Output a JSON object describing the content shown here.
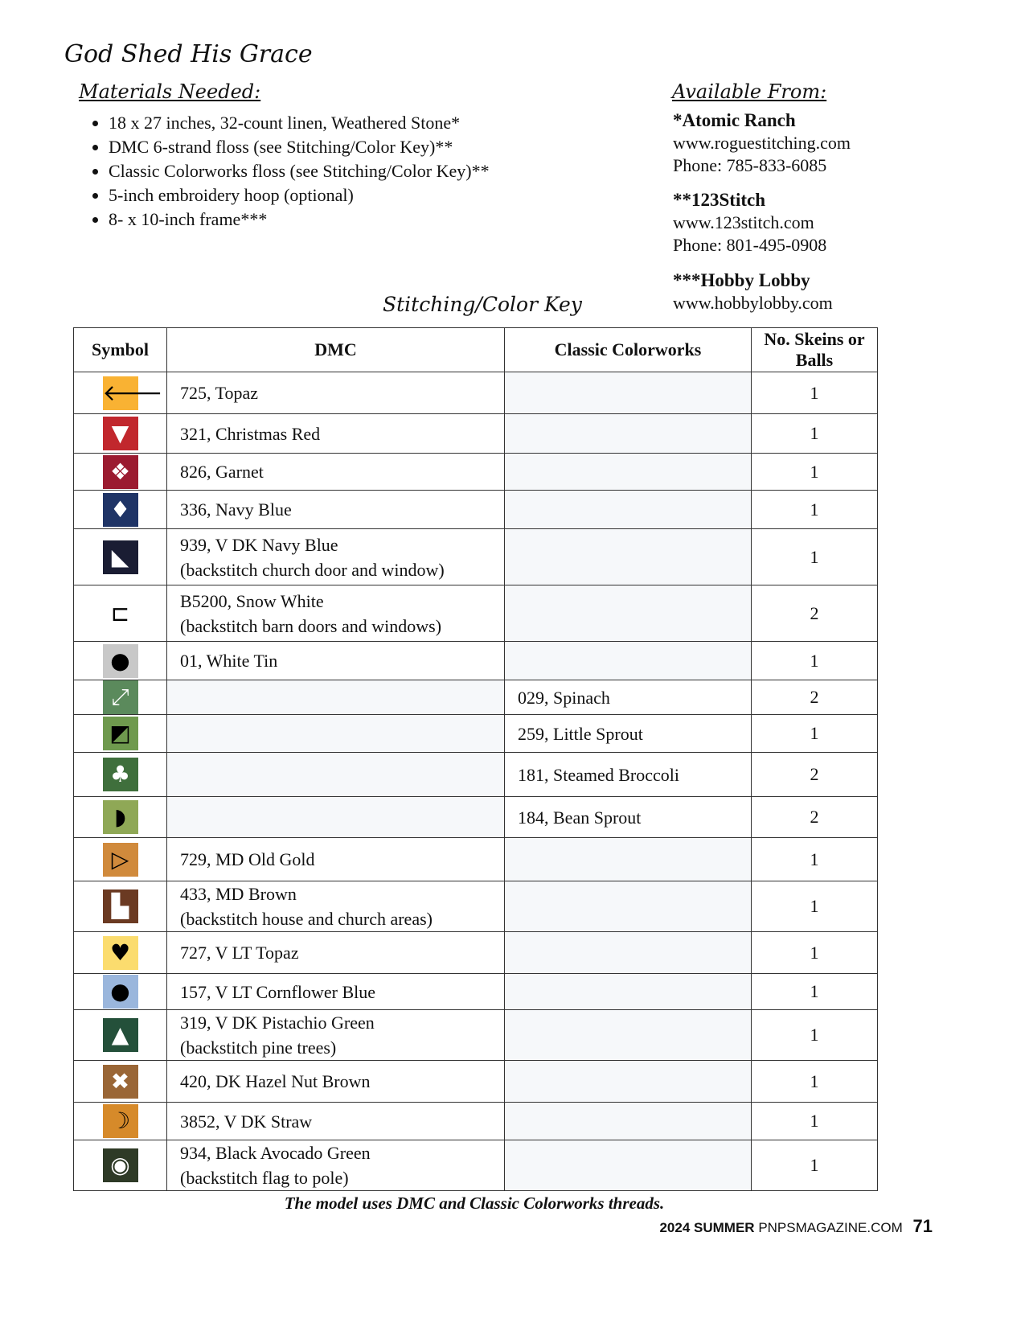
{
  "title": "God Shed His Grace",
  "materials": {
    "heading": "Materials Needed:",
    "items": [
      "18 x 27 inches, 32-count linen, Weathered Stone*",
      "DMC 6-strand floss (see Stitching/Color Key)**",
      "Classic Colorworks floss (see Stitching/Color Key)**",
      "5-inch embroidery hoop (optional)",
      "8- x 10-inch frame***"
    ]
  },
  "available": {
    "heading": "Available From:",
    "sources": [
      {
        "name": "*Atomic Ranch",
        "url": "www.roguestitching.com",
        "phone": "Phone: 785-833-6085"
      },
      {
        "name": "**123Stitch",
        "url": "www.123stitch.com",
        "phone": "Phone: 801-495-0908"
      },
      {
        "name": "***Hobby Lobby",
        "url": "www.hobbylobby.com"
      }
    ]
  },
  "key": {
    "heading": "Stitching/Color Key",
    "columns": [
      "Symbol",
      "DMC",
      "Classic Colorworks",
      "No. Skeins or Balls"
    ],
    "rows": [
      {
        "icon": "arrow-left",
        "glyph": "🡐",
        "bg": "#f9b233",
        "fg": "#000",
        "dmc": "725, Topaz",
        "cc": "",
        "n": "1"
      },
      {
        "icon": "triangle-down",
        "glyph": "▼",
        "bg": "#c1272d",
        "fg": "#fff",
        "dmc": "321, Christmas Red",
        "cc": "",
        "n": "1"
      },
      {
        "icon": "quad-diamond",
        "glyph": "❖",
        "bg": "#9b1b30",
        "fg": "#fff",
        "dmc": "826, Garnet",
        "cc": "",
        "n": "1"
      },
      {
        "icon": "diamond",
        "glyph": "♦",
        "bg": "#1f3466",
        "fg": "#fff",
        "dmc": "336, Navy Blue",
        "cc": "",
        "n": "1"
      },
      {
        "icon": "half-triangle",
        "glyph": "◣",
        "bg": "#1a1d33",
        "fg": "#fff",
        "dmc": "939, V DK Navy Blue",
        "note": "(backstitch church door and window)",
        "cc": "",
        "n": "1"
      },
      {
        "icon": "bracket",
        "glyph": "⊏",
        "bg": "#fff",
        "fg": "#000",
        "dmc": "B5200, Snow White",
        "note": "(backstitch barn doors and windows)",
        "cc": "",
        "n": "2"
      },
      {
        "icon": "ornament",
        "glyph": "●",
        "bg": "#c8c8c8",
        "fg": "#000",
        "dmc": "01, White Tin",
        "cc": "",
        "n": "1"
      },
      {
        "icon": "expand-arrows",
        "glyph": "⤢",
        "bg": "#5b8a5c",
        "fg": "#fff",
        "dmc": "",
        "cc": "029, Spinach",
        "n": "2"
      },
      {
        "icon": "half-square",
        "glyph": "◩",
        "bg": "#6f9a4e",
        "fg": "#000",
        "dmc": "",
        "cc": "259, Little Sprout",
        "n": "1"
      },
      {
        "icon": "club",
        "glyph": "♣",
        "bg": "#3f6f3c",
        "fg": "#fff",
        "dmc": "",
        "cc": "181, Steamed Broccoli",
        "n": "2"
      },
      {
        "icon": "half-circle",
        "glyph": "◗",
        "bg": "#8fa856",
        "fg": "#000",
        "dmc": "",
        "cc": "184, Bean Sprout",
        "n": "2"
      },
      {
        "icon": "triangle-right-outline",
        "glyph": "▷",
        "bg": "#d08a3c",
        "fg": "#000",
        "dmc": "729, MD Old Gold",
        "cc": "",
        "n": "1"
      },
      {
        "icon": "l-shape",
        "glyph": "▙",
        "bg": "#6b3a22",
        "fg": "#fff",
        "dmc": "433, MD Brown",
        "note": "(backstitch house and church areas)",
        "cc": "",
        "n": "1"
      },
      {
        "icon": "heart",
        "glyph": "♥",
        "bg": "#fbdc6e",
        "fg": "#000",
        "dmc": "727, V LT Topaz",
        "cc": "",
        "n": "1"
      },
      {
        "icon": "circle",
        "glyph": "●",
        "bg": "#9ab6dc",
        "fg": "#000",
        "dmc": "157, V LT Cornflower Blue",
        "cc": "",
        "n": "1"
      },
      {
        "icon": "pine-tree",
        "glyph": "▲",
        "bg": "#24503a",
        "fg": "#fff",
        "dmc": "319, V DK Pistachio Green",
        "note": "(backstitch pine trees)",
        "cc": "",
        "n": "1"
      },
      {
        "icon": "x-cross",
        "glyph": "✖",
        "bg": "#9a6636",
        "fg": "#fff",
        "dmc": "420, DK Hazel Nut Brown",
        "cc": "",
        "n": "1"
      },
      {
        "icon": "crescent",
        "glyph": "☽",
        "bg": "#d68a2a",
        "fg": "#000",
        "dmc": "3852, V DK Straw",
        "cc": "",
        "n": "1"
      },
      {
        "icon": "ring",
        "glyph": "◉",
        "bg": "#2e3a26",
        "fg": "#fff",
        "dmc": "934, Black Avocado Green",
        "note": "(backstitch flag to pole)",
        "cc": "",
        "n": "1"
      }
    ]
  },
  "footnote": "The model uses DMC and Classic Colorworks threads.",
  "footer": {
    "issue": "2024 SUMMER",
    "site": "PNPSMAGAZINE.COM",
    "page": "71"
  }
}
